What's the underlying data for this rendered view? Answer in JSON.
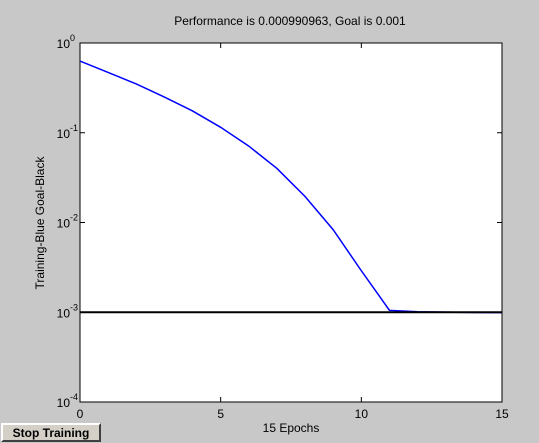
{
  "window": {
    "stop_button_label": "Stop Training"
  },
  "chart_data": {
    "type": "line",
    "title": "Performance is 0.000990963, Goal is 0.001",
    "xlabel": "15 Epochs",
    "ylabel": "Training-Blue  Goal-Black",
    "xlim": [
      0,
      15
    ],
    "ylim": [
      0.0001,
      1
    ],
    "yscale": "log",
    "grid": false,
    "x_ticks": [
      {
        "value": 0,
        "label": "0"
      },
      {
        "value": 5,
        "label": "5"
      },
      {
        "value": 10,
        "label": "10"
      },
      {
        "value": 15,
        "label": "15"
      }
    ],
    "y_ticks": [
      {
        "value": 1,
        "base": "10",
        "exp": "0"
      },
      {
        "value": 0.1,
        "base": "10",
        "exp": "-1"
      },
      {
        "value": 0.01,
        "base": "10",
        "exp": "-2"
      },
      {
        "value": 0.001,
        "base": "10",
        "exp": "-3"
      },
      {
        "value": 0.0001,
        "base": "10",
        "exp": "-4"
      }
    ],
    "series": [
      {
        "color": "#0000ff",
        "x": [
          0,
          1,
          2,
          3,
          4,
          5,
          6,
          7,
          8,
          9,
          10,
          11,
          12,
          13,
          14,
          15
        ],
        "y": [
          0.63,
          0.47,
          0.35,
          0.25,
          0.175,
          0.115,
          0.071,
          0.04,
          0.0195,
          0.0083,
          0.0029,
          0.00105,
          0.001012,
          0.001002,
          0.000995,
          0.000990963
        ]
      },
      {
        "color": "#000000",
        "x": [
          0,
          15
        ],
        "y": [
          0.001,
          0.001
        ]
      }
    ]
  }
}
